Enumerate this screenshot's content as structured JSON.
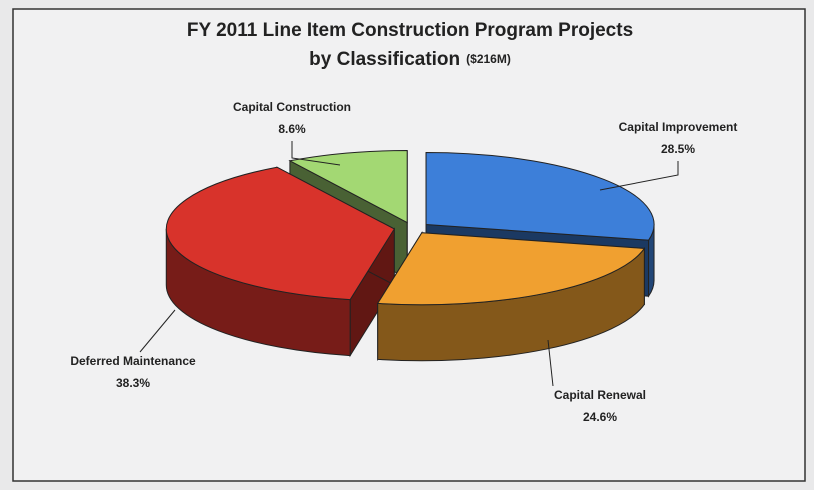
{
  "chart_data": {
    "type": "pie",
    "title": "FY 2011 Line Item Construction Program Projects",
    "subtitle": "by Classification",
    "title_note": "($216M)",
    "categories": [
      "Capital Improvement",
      "Capital Renewal",
      "Deferred Maintenance",
      "Capital Construction"
    ],
    "values": [
      28.5,
      24.6,
      38.3,
      8.6
    ],
    "value_labels": [
      "28.5%",
      "24.6%",
      "38.3%",
      "8.6%"
    ],
    "colors": [
      "#3d7fd9",
      "#f0a030",
      "#d8332b",
      "#a3d873"
    ]
  }
}
